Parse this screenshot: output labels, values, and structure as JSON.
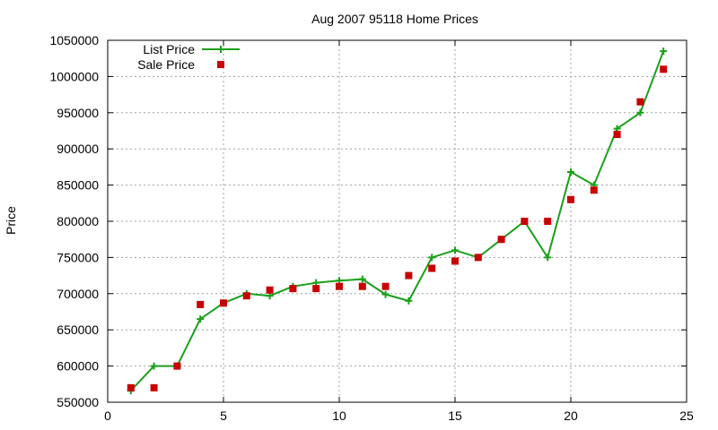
{
  "chart_data": {
    "type": "line",
    "title": "Aug 2007 95118 Home Prices",
    "xlabel": "",
    "ylabel": "Price",
    "xlim": [
      0,
      25
    ],
    "ylim": [
      550000,
      1050000
    ],
    "xticks": [
      "0",
      "5",
      "10",
      "15",
      "20",
      "25"
    ],
    "yticks": [
      "550000",
      "600000",
      "650000",
      "700000",
      "750000",
      "800000",
      "850000",
      "900000",
      "950000",
      "1000000",
      "1050000"
    ],
    "grid": true,
    "legend_position": "top-left",
    "series": [
      {
        "name": "List Price",
        "style": "line-points",
        "marker": "plus",
        "color": "#1aa01a",
        "x": [
          1,
          2,
          3,
          4,
          5,
          6,
          7,
          8,
          9,
          10,
          11,
          12,
          13,
          14,
          15,
          16,
          17,
          18,
          19,
          20,
          21,
          22,
          23,
          24
        ],
        "y": [
          566000,
          600000,
          600000,
          665000,
          687000,
          700000,
          697000,
          710000,
          715000,
          718000,
          720000,
          699000,
          690000,
          750000,
          760000,
          750000,
          775000,
          800000,
          750000,
          868000,
          850000,
          928000,
          950000,
          1035000
        ]
      },
      {
        "name": "Sale Price",
        "style": "points",
        "marker": "square",
        "color": "#c80000",
        "x": [
          1,
          2,
          3,
          4,
          5,
          6,
          7,
          8,
          9,
          10,
          11,
          12,
          13,
          14,
          15,
          16,
          17,
          18,
          19,
          20,
          21,
          22,
          23,
          24
        ],
        "y": [
          570000,
          570000,
          600000,
          685000,
          687000,
          697000,
          705000,
          707000,
          707000,
          710000,
          710000,
          710000,
          725000,
          735000,
          745000,
          750000,
          775000,
          800000,
          800000,
          830000,
          843000,
          920000,
          965000,
          1010000
        ]
      }
    ]
  }
}
